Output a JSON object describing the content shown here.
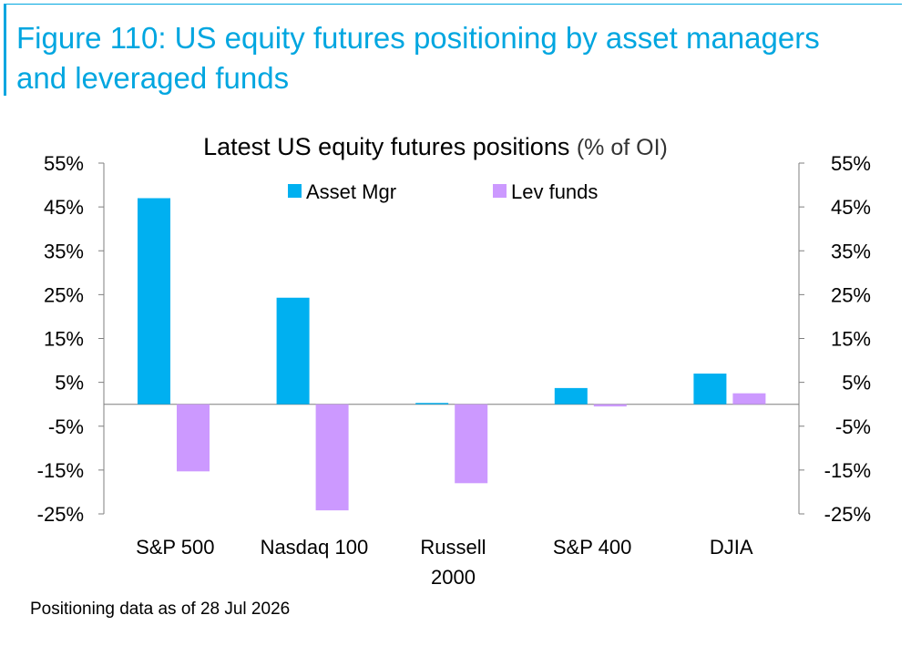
{
  "figure": {
    "title": "Figure 110: US equity futures positioning by asset managers and leveraged funds",
    "note": "Positioning data as of 28 Jul 2026"
  },
  "chart_data": {
    "type": "bar",
    "title": "Latest US equity futures positions",
    "title_suffix": "(% of OI)",
    "categories": [
      [
        "S&P 500"
      ],
      [
        "Nasdaq 100"
      ],
      [
        "Russell",
        "2000"
      ],
      [
        "S&P 400"
      ],
      [
        "DJIA"
      ]
    ],
    "series": [
      {
        "name": "Asset Mgr",
        "color": "#00b0f0",
        "values": [
          47,
          24.3,
          0.3,
          3.7,
          7
        ]
      },
      {
        "name": "Lev funds",
        "color": "#cc99ff",
        "values": [
          -15.3,
          -24.2,
          -18,
          -0.5,
          2.5
        ]
      }
    ],
    "ylim": [
      -25,
      55
    ],
    "yticks": [
      55,
      45,
      35,
      25,
      15,
      5,
      -5,
      -15,
      -25
    ],
    "tick_suffix": "%",
    "secondary_axis": true,
    "legend_position": "top-center",
    "grid": false
  }
}
